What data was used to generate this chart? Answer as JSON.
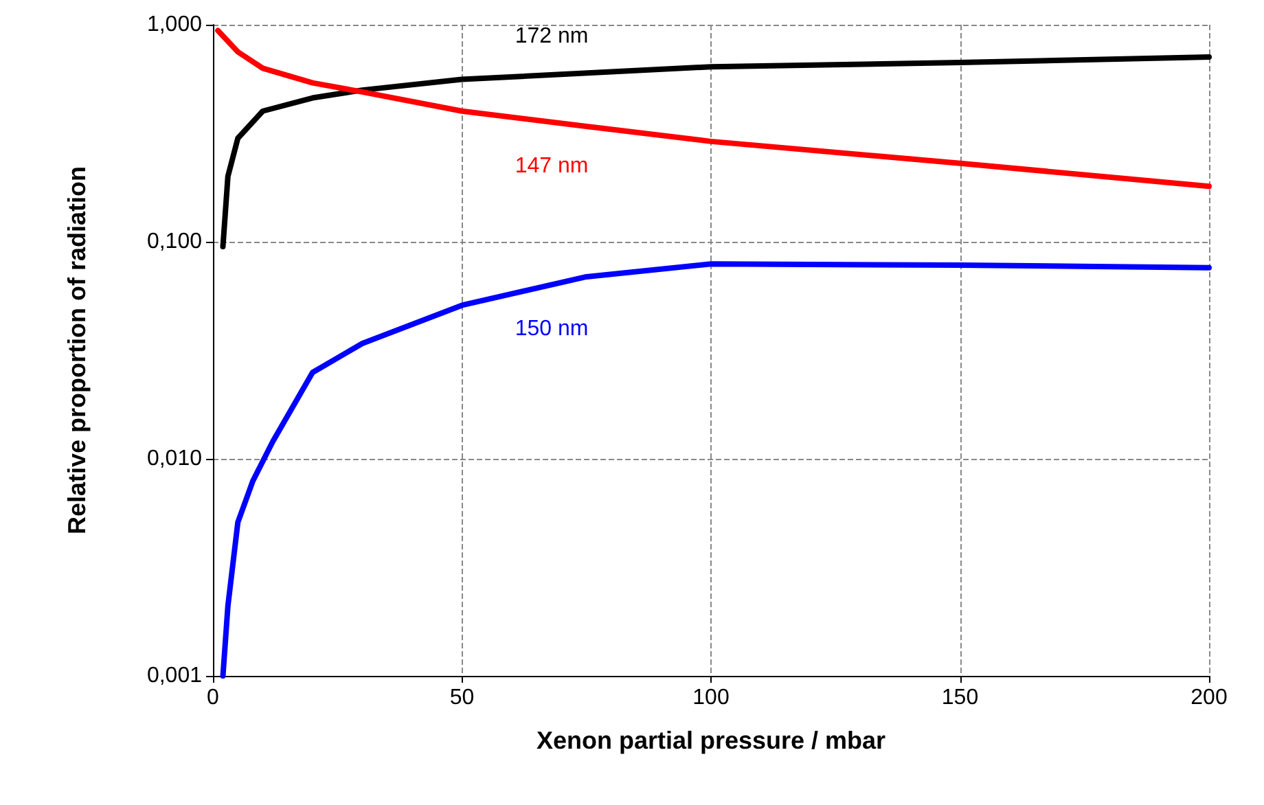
{
  "chart_data": {
    "type": "line",
    "xlabel": "Xenon partial pressure / mbar",
    "ylabel": "Relative proportion of radiation",
    "log": "y",
    "grid": true,
    "legend": false,
    "marker": "none",
    "line_style": "solid",
    "xlim": [
      0,
      200
    ],
    "xticks": [
      0,
      50,
      100,
      150,
      200
    ],
    "ylim": [
      0.001,
      1
    ],
    "yticks": [
      {
        "value": 0.001,
        "label": "0,001"
      },
      {
        "value": 0.01,
        "label": "0,010"
      },
      {
        "value": 0.1,
        "label": "0,100"
      },
      {
        "value": 1,
        "label": "1,000"
      }
    ],
    "series": [
      {
        "name": "172 nm",
        "color": "#000000",
        "x": [
          2,
          3,
          5,
          10,
          20,
          30,
          50,
          100,
          150,
          200
        ],
        "values": [
          0.095,
          0.2,
          0.3,
          0.4,
          0.46,
          0.5,
          0.56,
          0.64,
          0.67,
          0.71
        ]
      },
      {
        "name": "147 nm",
        "color": "#ff0000",
        "x": [
          1,
          5,
          10,
          20,
          30,
          50,
          75,
          100,
          150,
          200
        ],
        "values": [
          0.94,
          0.75,
          0.63,
          0.54,
          0.49,
          0.4,
          0.34,
          0.29,
          0.23,
          0.18
        ]
      },
      {
        "name": "150 nm",
        "color": "#0000ff",
        "x": [
          2,
          3,
          5,
          8,
          12,
          20,
          30,
          50,
          75,
          100,
          150,
          200
        ],
        "values": [
          0.001,
          0.0021,
          0.0051,
          0.0079,
          0.012,
          0.025,
          0.034,
          0.051,
          0.069,
          0.079,
          0.078,
          0.076
        ]
      }
    ]
  }
}
